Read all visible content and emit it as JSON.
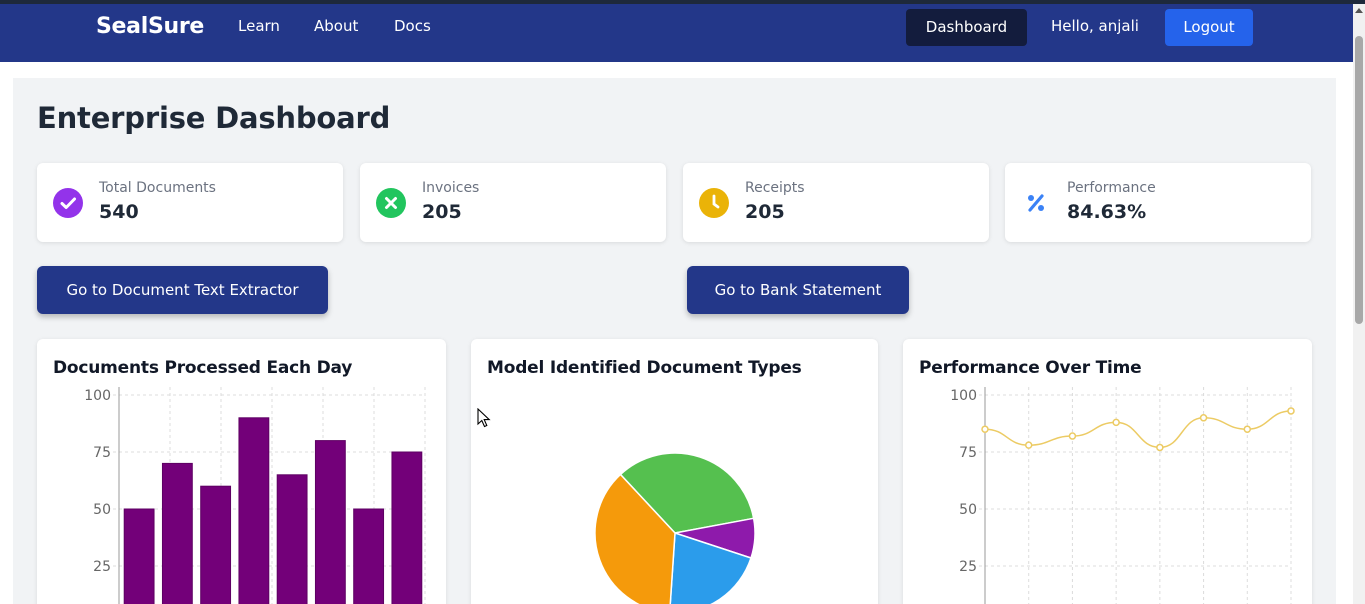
{
  "nav": {
    "brand": "SealSure",
    "links": [
      "Learn",
      "About",
      "Docs"
    ],
    "dashboard": "Dashboard",
    "greeting": "Hello, anjali",
    "logout": "Logout"
  },
  "page": {
    "title": "Enterprise Dashboard"
  },
  "stats": [
    {
      "label": "Total Documents",
      "value": "540",
      "icon": "check-circle-icon",
      "color": "#9333ea"
    },
    {
      "label": "Invoices",
      "value": "205",
      "icon": "x-circle-icon",
      "color": "#22c55e"
    },
    {
      "label": "Receipts",
      "value": "205",
      "icon": "clock-icon",
      "color": "#eab308"
    },
    {
      "label": "Performance",
      "value": "84.63%",
      "icon": "percent-icon",
      "color": "#3b82f6"
    }
  ],
  "actions": {
    "extractor": "Go to Document Text Extractor",
    "bank": "Go to Bank Statement"
  },
  "chart_data": [
    {
      "type": "bar",
      "title": "Documents Processed Each Day",
      "values": [
        50,
        70,
        60,
        90,
        65,
        80,
        50,
        75
      ],
      "ylim": [
        0,
        100
      ],
      "yticks": [
        "100",
        "75",
        "50",
        "25"
      ],
      "color": "#730079",
      "grid": true
    },
    {
      "type": "pie",
      "title": "Model Identified Document Types",
      "slices": [
        {
          "value": 34,
          "color": "#55c04f"
        },
        {
          "value": 8,
          "color": "#8e1aab"
        },
        {
          "value": 21,
          "color": "#2b9ceb"
        },
        {
          "value": 37,
          "color": "#f59a0b"
        }
      ]
    },
    {
      "type": "line",
      "title": "Performance Over Time",
      "values": [
        85,
        78,
        82,
        88,
        77,
        90,
        85,
        93
      ],
      "ylim": [
        0,
        100
      ],
      "yticks": [
        "100",
        "75",
        "50",
        "25"
      ],
      "color": "#eccb64",
      "grid": true
    }
  ]
}
